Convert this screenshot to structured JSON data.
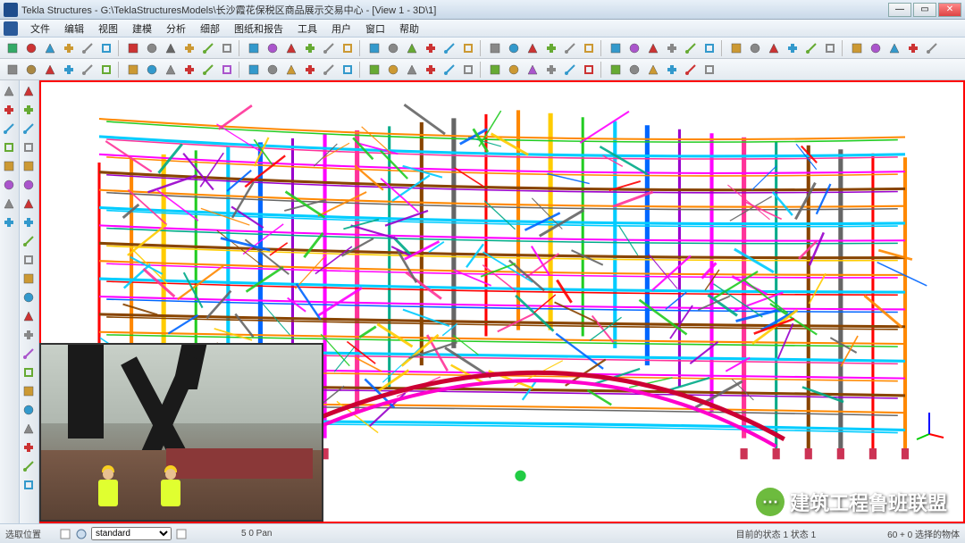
{
  "window": {
    "title": "Tekla Structures - G:\\TeklaStructuresModels\\长沙霞花保税区商品展示交易中心 - [View 1 - 3D\\1]"
  },
  "menu": {
    "items": [
      "文件",
      "编辑",
      "视图",
      "建模",
      "分析",
      "细部",
      "图纸和报告",
      "工具",
      "用户",
      "窗口",
      "帮助"
    ]
  },
  "toolbars": {
    "row1_colors": [
      "#3a6",
      "#c33",
      "#39c",
      "#c93",
      "#888",
      "#39c",
      "#c33",
      "#888",
      "#666",
      "#c93",
      "#6a3",
      "#888",
      "#39c",
      "#a5c",
      "#c33",
      "#6a3",
      "#888",
      "#c93",
      "#39c",
      "#888",
      "#6a3",
      "#c33",
      "#39c",
      "#c93",
      "#888",
      "#39c",
      "#c33",
      "#6a3",
      "#888",
      "#c93",
      "#39c",
      "#a5c",
      "#c33",
      "#888",
      "#6a3",
      "#39c",
      "#c93",
      "#888",
      "#c33",
      "#39c",
      "#6a3",
      "#888",
      "#c93",
      "#a5c",
      "#39c",
      "#c33",
      "#888"
    ],
    "row2_colors": [
      "#888",
      "#a84",
      "#c33",
      "#39c",
      "#888",
      "#6a3",
      "#c93",
      "#39c",
      "#888",
      "#c33",
      "#6a3",
      "#a5c",
      "#39c",
      "#888",
      "#c93",
      "#c33",
      "#888",
      "#39c",
      "#6a3",
      "#c93",
      "#888",
      "#c33",
      "#39c",
      "#888",
      "#6a3",
      "#c93",
      "#a5c",
      "#888",
      "#39c",
      "#c33",
      "#6a3",
      "#888",
      "#c93",
      "#39c",
      "#c33",
      "#888"
    ]
  },
  "side_toolbar": {
    "group1_colors": [
      "#888",
      "#c33",
      "#39c",
      "#6a3",
      "#c93",
      "#a5c",
      "#888",
      "#39c"
    ],
    "group2_colors": [
      "#c33",
      "#6a3",
      "#39c",
      "#888",
      "#c93",
      "#a5c",
      "#c33",
      "#39c",
      "#6a3",
      "#888",
      "#c93",
      "#39c",
      "#c33",
      "#888",
      "#a5c",
      "#6a3",
      "#c93",
      "#39c",
      "#888",
      "#c33",
      "#6a3",
      "#39c"
    ]
  },
  "viewport": {
    "type": "3d-structural-model",
    "frame_color": "#ff0000",
    "background": "#ffffff",
    "member_palette": [
      "#ff0000",
      "#ff8800",
      "#ffcc00",
      "#22cc22",
      "#00ccff",
      "#0066ff",
      "#9900cc",
      "#ff00ff",
      "#ff3399",
      "#00aa88",
      "#884400",
      "#666666"
    ],
    "axis_colors": {
      "x": "#ff0000",
      "y": "#00cc00",
      "z": "#0000ff"
    }
  },
  "statusbar": {
    "hint": "选取位置",
    "combo_label": "standard",
    "coords": "5     0     Pan",
    "center": "目前的状态 1 状态 1",
    "right": "60 + 0 选择的物体"
  },
  "watermark": {
    "text": "建筑工程鲁班联盟"
  }
}
